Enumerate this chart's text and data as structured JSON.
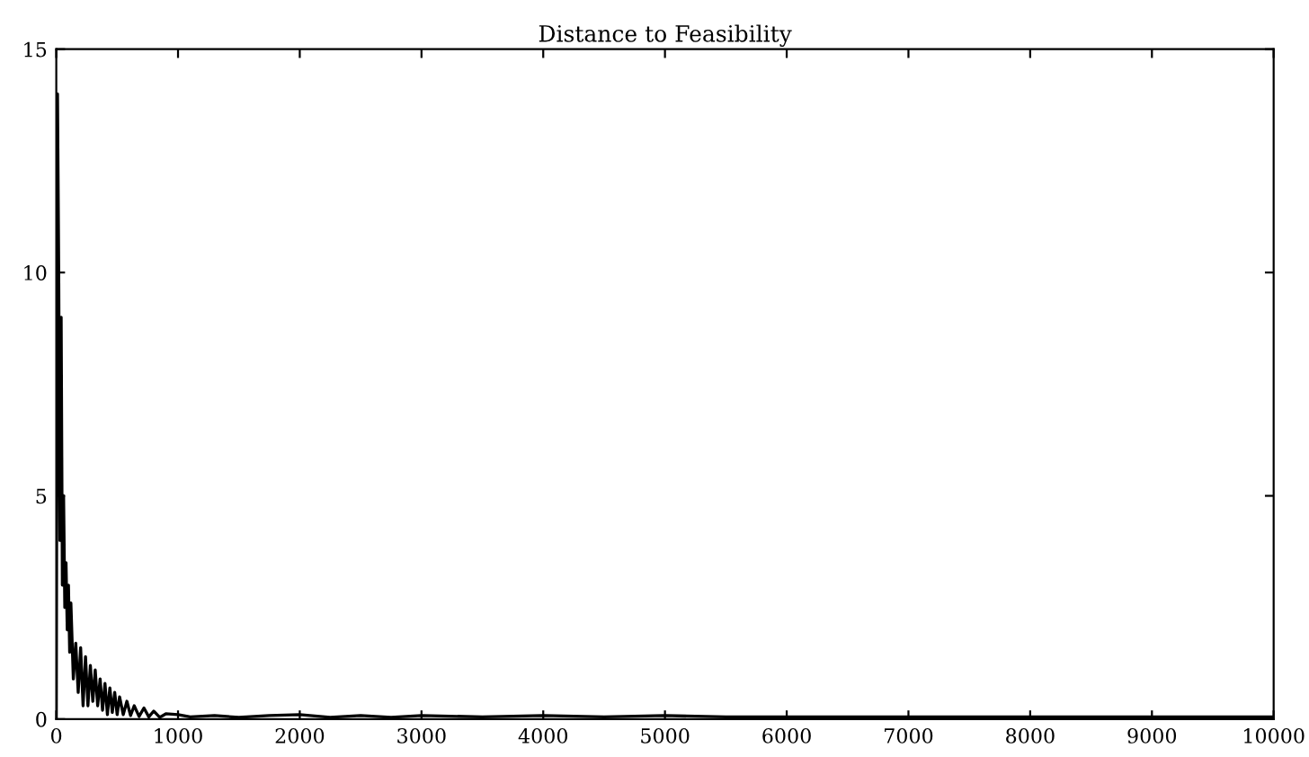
{
  "chart_data": {
    "type": "line",
    "title": "Distance to Feasibility",
    "series": [
      {
        "color": "#000000",
        "x": [
          0,
          10,
          20,
          30,
          40,
          50,
          60,
          70,
          80,
          90,
          100,
          110,
          120,
          140,
          160,
          180,
          200,
          220,
          240,
          260,
          280,
          300,
          320,
          340,
          360,
          380,
          400,
          420,
          440,
          460,
          480,
          500,
          520,
          550,
          580,
          610,
          640,
          680,
          720,
          760,
          800,
          850,
          900,
          1000,
          1100,
          1300,
          1500,
          1750,
          2000,
          2250,
          2500,
          2750,
          3000,
          3500,
          4000,
          4500,
          5000,
          5500,
          6000,
          6500,
          7000,
          7500,
          8000,
          8500,
          9000,
          9500,
          10000
        ],
        "values": [
          0,
          14,
          10,
          4,
          9,
          3,
          5,
          2.5,
          3.5,
          2,
          3,
          1.5,
          2.6,
          0.9,
          1.7,
          0.6,
          1.6,
          0.3,
          1.4,
          0.3,
          1.2,
          0.4,
          1.1,
          0.3,
          0.9,
          0.2,
          0.8,
          0.1,
          0.7,
          0.15,
          0.6,
          0.1,
          0.5,
          0.1,
          0.4,
          0.08,
          0.3,
          0.06,
          0.25,
          0.05,
          0.18,
          0.04,
          0.12,
          0.1,
          0.05,
          0.08,
          0.04,
          0.08,
          0.1,
          0.04,
          0.08,
          0.04,
          0.08,
          0.05,
          0.08,
          0.05,
          0.08,
          0.05,
          0.05,
          0.05,
          0.05,
          0.05,
          0.05,
          0.05,
          0.05,
          0.05,
          0.05
        ]
      }
    ],
    "xlim": [
      0,
      10000
    ],
    "xticks": [
      0,
      1000,
      2000,
      3000,
      4000,
      5000,
      6000,
      7000,
      8000,
      9000,
      10000
    ],
    "ylim": [
      0,
      15
    ],
    "yticks": [
      0,
      5,
      10,
      15
    ],
    "grid": false,
    "legend": false
  }
}
